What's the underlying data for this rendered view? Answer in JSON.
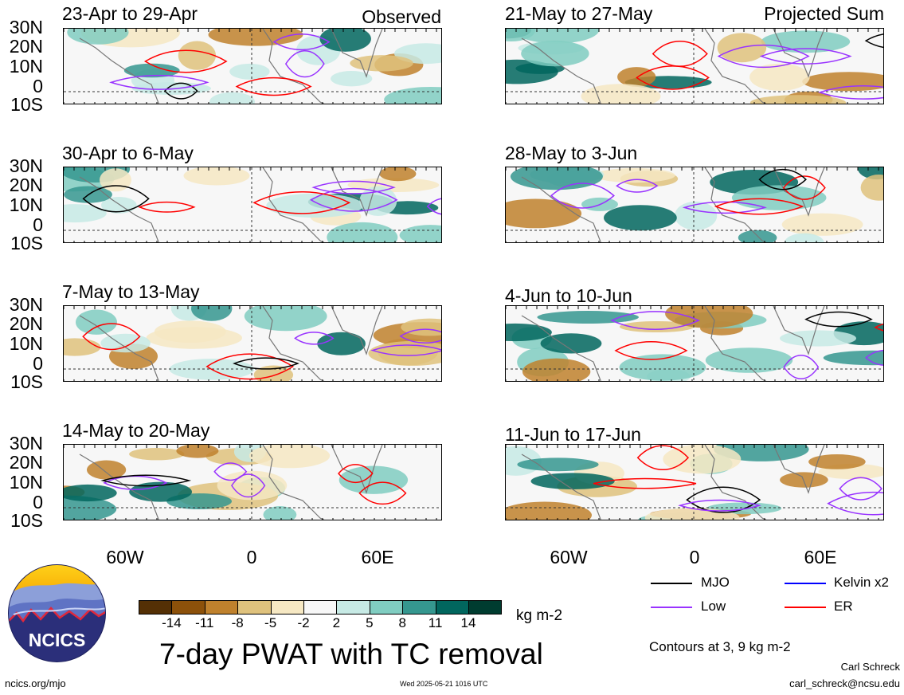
{
  "observed_label": "Observed",
  "projected_label": "Projected Sum",
  "panels_left": [
    {
      "title": "23-Apr to 29-Apr"
    },
    {
      "title": "30-Apr to 6-May"
    },
    {
      "title": "7-May to 13-May"
    },
    {
      "title": "14-May to 20-May"
    }
  ],
  "panels_right": [
    {
      "title": "21-May to 27-May"
    },
    {
      "title": "28-May to 3-Jun"
    },
    {
      "title": "4-Jun to 10-Jun"
    },
    {
      "title": "11-Jun to 17-Jun"
    }
  ],
  "lat_labels": [
    "30N",
    "20N",
    "10N",
    "0",
    "10S"
  ],
  "lon_labels": [
    "60W",
    "0",
    "60E"
  ],
  "colorbar": {
    "labels": [
      "-14",
      "-11",
      "-8",
      "-5",
      "-2",
      "2",
      "5",
      "8",
      "11",
      "14"
    ],
    "colors": [
      "#543005",
      "#8c510a",
      "#bf812d",
      "#dfc27d",
      "#f6e8c3",
      "#f7f7f7",
      "#c7eae5",
      "#80cdc1",
      "#35978f",
      "#01665e",
      "#003c30"
    ],
    "units": "kg m-2"
  },
  "legend": [
    {
      "label": "MJO",
      "color": "#000000"
    },
    {
      "label": "Kelvin x2",
      "color": "#0000ff"
    },
    {
      "label": "Low",
      "color": "#9933ff"
    },
    {
      "label": "ER",
      "color": "#ff0000"
    }
  ],
  "main_title": "7-day PWAT with TC removal",
  "contours_note": "Contours at 3, 9 kg m-2",
  "logo_text": "NCICS",
  "footer_left": "ncics.org/mjo",
  "footer_center": "Wed 2025-05-21 1016 UTC",
  "author_name": "Carl Schreck",
  "author_email": "carl_schreck@ncsu.edu"
}
